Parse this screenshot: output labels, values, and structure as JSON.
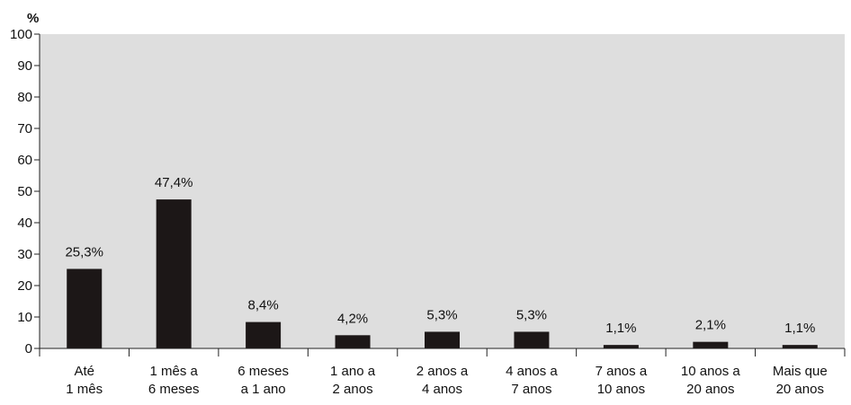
{
  "chart_data": {
    "type": "bar",
    "ylabel": "%",
    "ylim": [
      0,
      100
    ],
    "yticks": [
      0,
      10,
      20,
      30,
      40,
      50,
      60,
      70,
      80,
      90,
      100
    ],
    "categories": [
      [
        "Até",
        "1 mês"
      ],
      [
        "1 mês a",
        "6 meses"
      ],
      [
        "6 meses",
        "a 1 ano"
      ],
      [
        "1 ano a",
        "2 anos"
      ],
      [
        "2 anos a",
        "4 anos"
      ],
      [
        "4 anos a",
        "7 anos"
      ],
      [
        "7 anos a",
        "10 anos"
      ],
      [
        "10 anos a",
        "20 anos"
      ],
      [
        "Mais que",
        "20 anos"
      ]
    ],
    "values": [
      25.3,
      47.4,
      8.4,
      4.2,
      5.3,
      5.3,
      1.1,
      2.1,
      1.1
    ],
    "data_labels": [
      "25,3%",
      "47,4%",
      "8,4%",
      "4,2%",
      "5,3%",
      "5,3%",
      "1,1%",
      "2,1%",
      "1,1%"
    ],
    "grid": false,
    "colors": {
      "plot_background": "#dedede",
      "bar": "#1c1717",
      "axis": "#222222"
    }
  }
}
